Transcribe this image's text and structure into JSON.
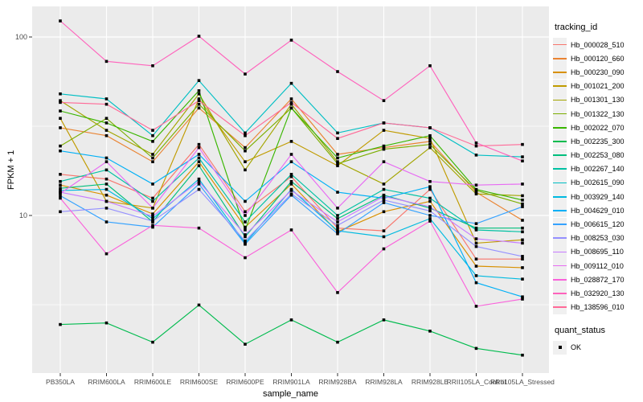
{
  "chart_data": {
    "type": "line",
    "title": "",
    "xlabel": "sample_name",
    "ylabel": "FPKM + 1",
    "y_scale": "log10",
    "y_ticks": [
      10,
      100
    ],
    "y_minor_ticks": [
      3.162,
      31.62
    ],
    "ylim": [
      1.31,
      148
    ],
    "grid": true,
    "panel_background": "#EBEBEB",
    "grid_color": "#FFFFFF",
    "tick_label_color": "#4D4D4D",
    "point_color": "#000000",
    "point_shape": "filled-square",
    "legend_title": "tracking_id",
    "categories": [
      "PB350LA",
      "RRIM600LA",
      "RRIM600LE",
      "RRIM600SE",
      "RRIM600PE",
      "RRIM901LA",
      "RRIM928BA",
      "RRIM928LA",
      "RRIM928LE",
      "RRII105LA_Control",
      "RRII105LA_Stressed"
    ],
    "series": [
      {
        "name": "Hb_000028_510",
        "color": "#F8766D",
        "values": [
          17,
          16,
          12.5,
          25,
          10.5,
          16.5,
          8.5,
          8.2,
          14,
          5.7,
          5.7
        ]
      },
      {
        "name": "Hb_000120_660",
        "color": "#EA8331",
        "values": [
          31,
          28,
          20,
          40,
          24,
          45,
          22,
          24,
          26,
          13.5,
          9.4
        ]
      },
      {
        "name": "Hb_000230_090",
        "color": "#D89000",
        "values": [
          14.8,
          13,
          10.2,
          20,
          8.6,
          15,
          8.1,
          10.5,
          12,
          5.2,
          5.1
        ]
      },
      {
        "name": "Hb_001021_200",
        "color": "#C09B00",
        "values": [
          35,
          12,
          11,
          45,
          20,
          26,
          19,
          30,
          27,
          7.0,
          7.3
        ]
      },
      {
        "name": "Hb_001301_130",
        "color": "#A3A500",
        "values": [
          44,
          30,
          22,
          48,
          18,
          42,
          20,
          15,
          24,
          13.2,
          12.9
        ]
      },
      {
        "name": "Hb_001322_130",
        "color": "#7CAE00",
        "values": [
          24.5,
          35,
          21,
          42,
          23,
          40,
          19.5,
          23.5,
          25,
          13.8,
          11.6
        ]
      },
      {
        "name": "Hb_002022_070",
        "color": "#39B600",
        "values": [
          38.5,
          33,
          26,
          50,
          8.3,
          40,
          21,
          24.5,
          28,
          14,
          12.2
        ]
      },
      {
        "name": "Hb_002235_300",
        "color": "#00BB4E",
        "values": [
          2.45,
          2.5,
          1.95,
          3.15,
          1.9,
          2.6,
          1.95,
          2.6,
          2.25,
          1.8,
          1.65
        ]
      },
      {
        "name": "Hb_002253_080",
        "color": "#00BF7D",
        "values": [
          14.2,
          15,
          9.2,
          19,
          7.6,
          15.5,
          9.6,
          13,
          11,
          8.5,
          8.5
        ]
      },
      {
        "name": "Hb_002267_140",
        "color": "#00C1A3",
        "values": [
          15.5,
          18,
          12,
          21,
          9.2,
          17,
          10,
          14,
          12.5,
          8.3,
          8.1
        ]
      },
      {
        "name": "Hb_002615_090",
        "color": "#00BFC4",
        "values": [
          48,
          45,
          28,
          57,
          29,
          55,
          29,
          33,
          31,
          21.8,
          21.3
        ]
      },
      {
        "name": "Hb_003929_140",
        "color": "#00BAE0",
        "values": [
          13.8,
          14,
          9.6,
          16,
          7.0,
          14,
          8.2,
          7.6,
          9.6,
          4.6,
          4.4
        ]
      },
      {
        "name": "Hb_004629_010",
        "color": "#00B0F6",
        "values": [
          23,
          21,
          15,
          22,
          12,
          20,
          13.5,
          12.5,
          14.5,
          4.2,
          3.5
        ]
      },
      {
        "name": "Hb_006615_120",
        "color": "#35A2FF",
        "values": [
          12.9,
          9.2,
          8.6,
          15,
          6.9,
          13,
          7.9,
          11.8,
          10,
          9.0,
          11.2
        ]
      },
      {
        "name": "Hb_008253_030",
        "color": "#9590FF",
        "values": [
          10.5,
          11,
          9.3,
          14,
          7.2,
          13.2,
          8.8,
          12.2,
          10.6,
          6.7,
          5.9
        ]
      },
      {
        "name": "Hb_008695_110",
        "color": "#C77CFF",
        "values": [
          13.5,
          12,
          9.9,
          15.5,
          7.8,
          13.8,
          9.2,
          12.8,
          11.2,
          7.4,
          7.0
        ]
      },
      {
        "name": "Hb_009112_010",
        "color": "#E76BF3",
        "values": [
          13.3,
          20,
          11,
          24,
          10,
          22,
          11,
          20,
          15.5,
          14.8,
          15
        ]
      },
      {
        "name": "Hb_028872_170",
        "color": "#FA62DB",
        "values": [
          12.5,
          6.1,
          8.8,
          8.5,
          5.8,
          8.3,
          3.7,
          6.5,
          9.3,
          3.1,
          3.4
        ]
      },
      {
        "name": "Hb_032920_130",
        "color": "#FF62BC",
        "values": [
          123,
          73,
          69,
          101,
          62,
          96,
          64,
          44,
          69,
          25.5,
          20.2
        ]
      },
      {
        "name": "Hb_138596_010",
        "color": "#FF6A98",
        "values": [
          43,
          42,
          30,
          44,
          28,
          43,
          27,
          33,
          31,
          24.5,
          25
        ]
      }
    ],
    "quant_status": {
      "title": "quant_status",
      "items": [
        {
          "label": "OK",
          "marker": "filled-square",
          "color": "#000000"
        }
      ]
    }
  }
}
